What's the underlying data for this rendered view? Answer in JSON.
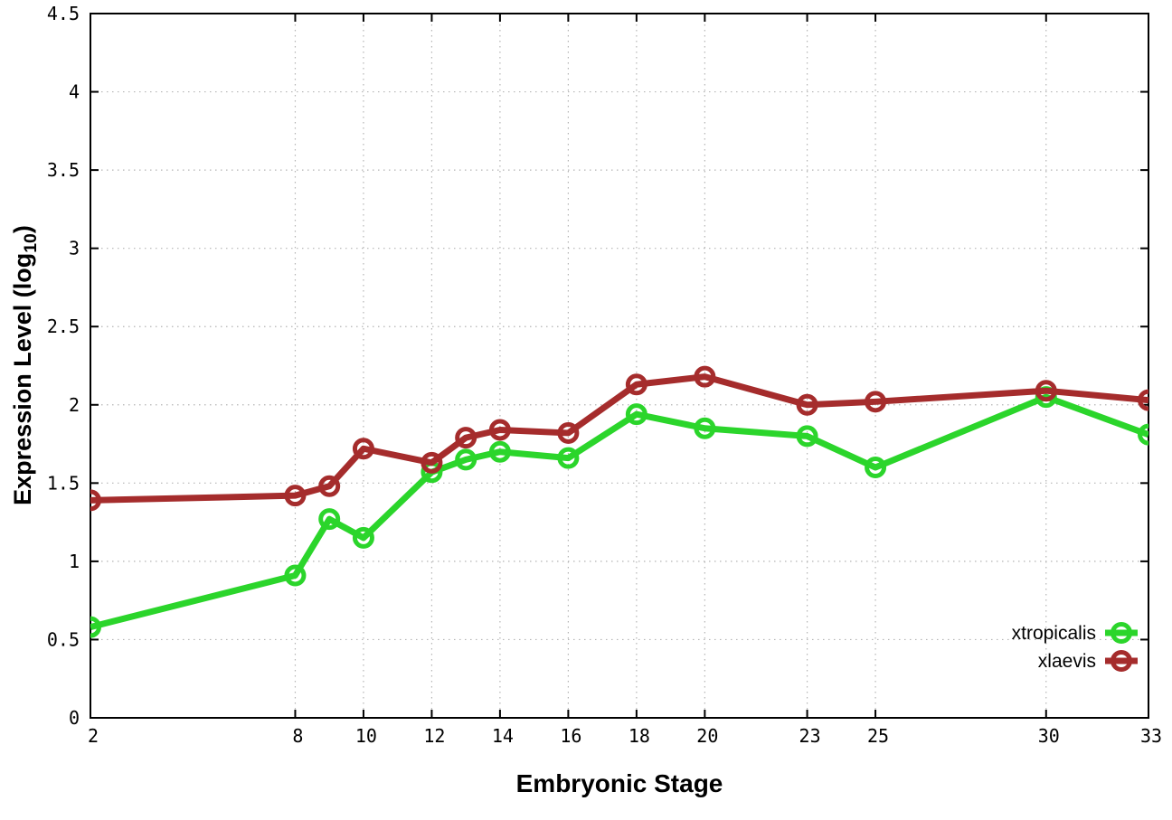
{
  "chart_data": {
    "type": "line",
    "title": "",
    "xlabel": "Embryonic Stage",
    "ylabel": "Expression Level (log10)",
    "ylabel_main": "Expression Level (log",
    "ylabel_sub": "10",
    "ylabel_close": ")",
    "x": [
      2,
      8,
      9,
      10,
      12,
      13,
      14,
      16,
      18,
      20,
      23,
      25,
      30,
      33
    ],
    "series": [
      {
        "name": "xtropicalis",
        "color": "#2bd52b",
        "marker": "open-circle",
        "values": [
          0.58,
          0.91,
          1.27,
          1.15,
          1.57,
          1.65,
          1.7,
          1.66,
          1.94,
          1.85,
          1.8,
          1.6,
          2.05,
          1.81
        ]
      },
      {
        "name": "xlaevis",
        "color": "#a52c2c",
        "marker": "open-circle",
        "values": [
          1.39,
          1.42,
          1.48,
          1.72,
          1.63,
          1.79,
          1.84,
          1.82,
          2.13,
          2.18,
          2.0,
          2.02,
          2.09,
          2.03
        ]
      }
    ],
    "xlim": [
      2,
      33
    ],
    "ylim": [
      0,
      4.5
    ],
    "xticks": [
      2,
      8,
      10,
      12,
      14,
      16,
      18,
      20,
      23,
      25,
      30,
      33
    ],
    "xtick_labels": [
      "2",
      "8",
      "10",
      "12",
      "14",
      "16",
      "18",
      "20",
      "23",
      "25",
      "30",
      "33"
    ],
    "yticks": [
      0,
      0.5,
      1,
      1.5,
      2,
      2.5,
      3,
      3.5,
      4,
      4.5
    ],
    "ytick_labels": [
      "0",
      "0.5",
      "1",
      "1.5",
      "2",
      "2.5",
      "3",
      "3.5",
      "4",
      "4.5"
    ],
    "grid": true,
    "legend_position": "inside-bottom-right",
    "legend": [
      "xtropicalis",
      "xlaevis"
    ]
  },
  "colors": {
    "background": "#ffffff",
    "axis": "#000000",
    "grid": "#b4b4b4",
    "tick_label": "#000000",
    "xtropicalis": "#2bd52b",
    "xlaevis": "#a52c2c"
  }
}
